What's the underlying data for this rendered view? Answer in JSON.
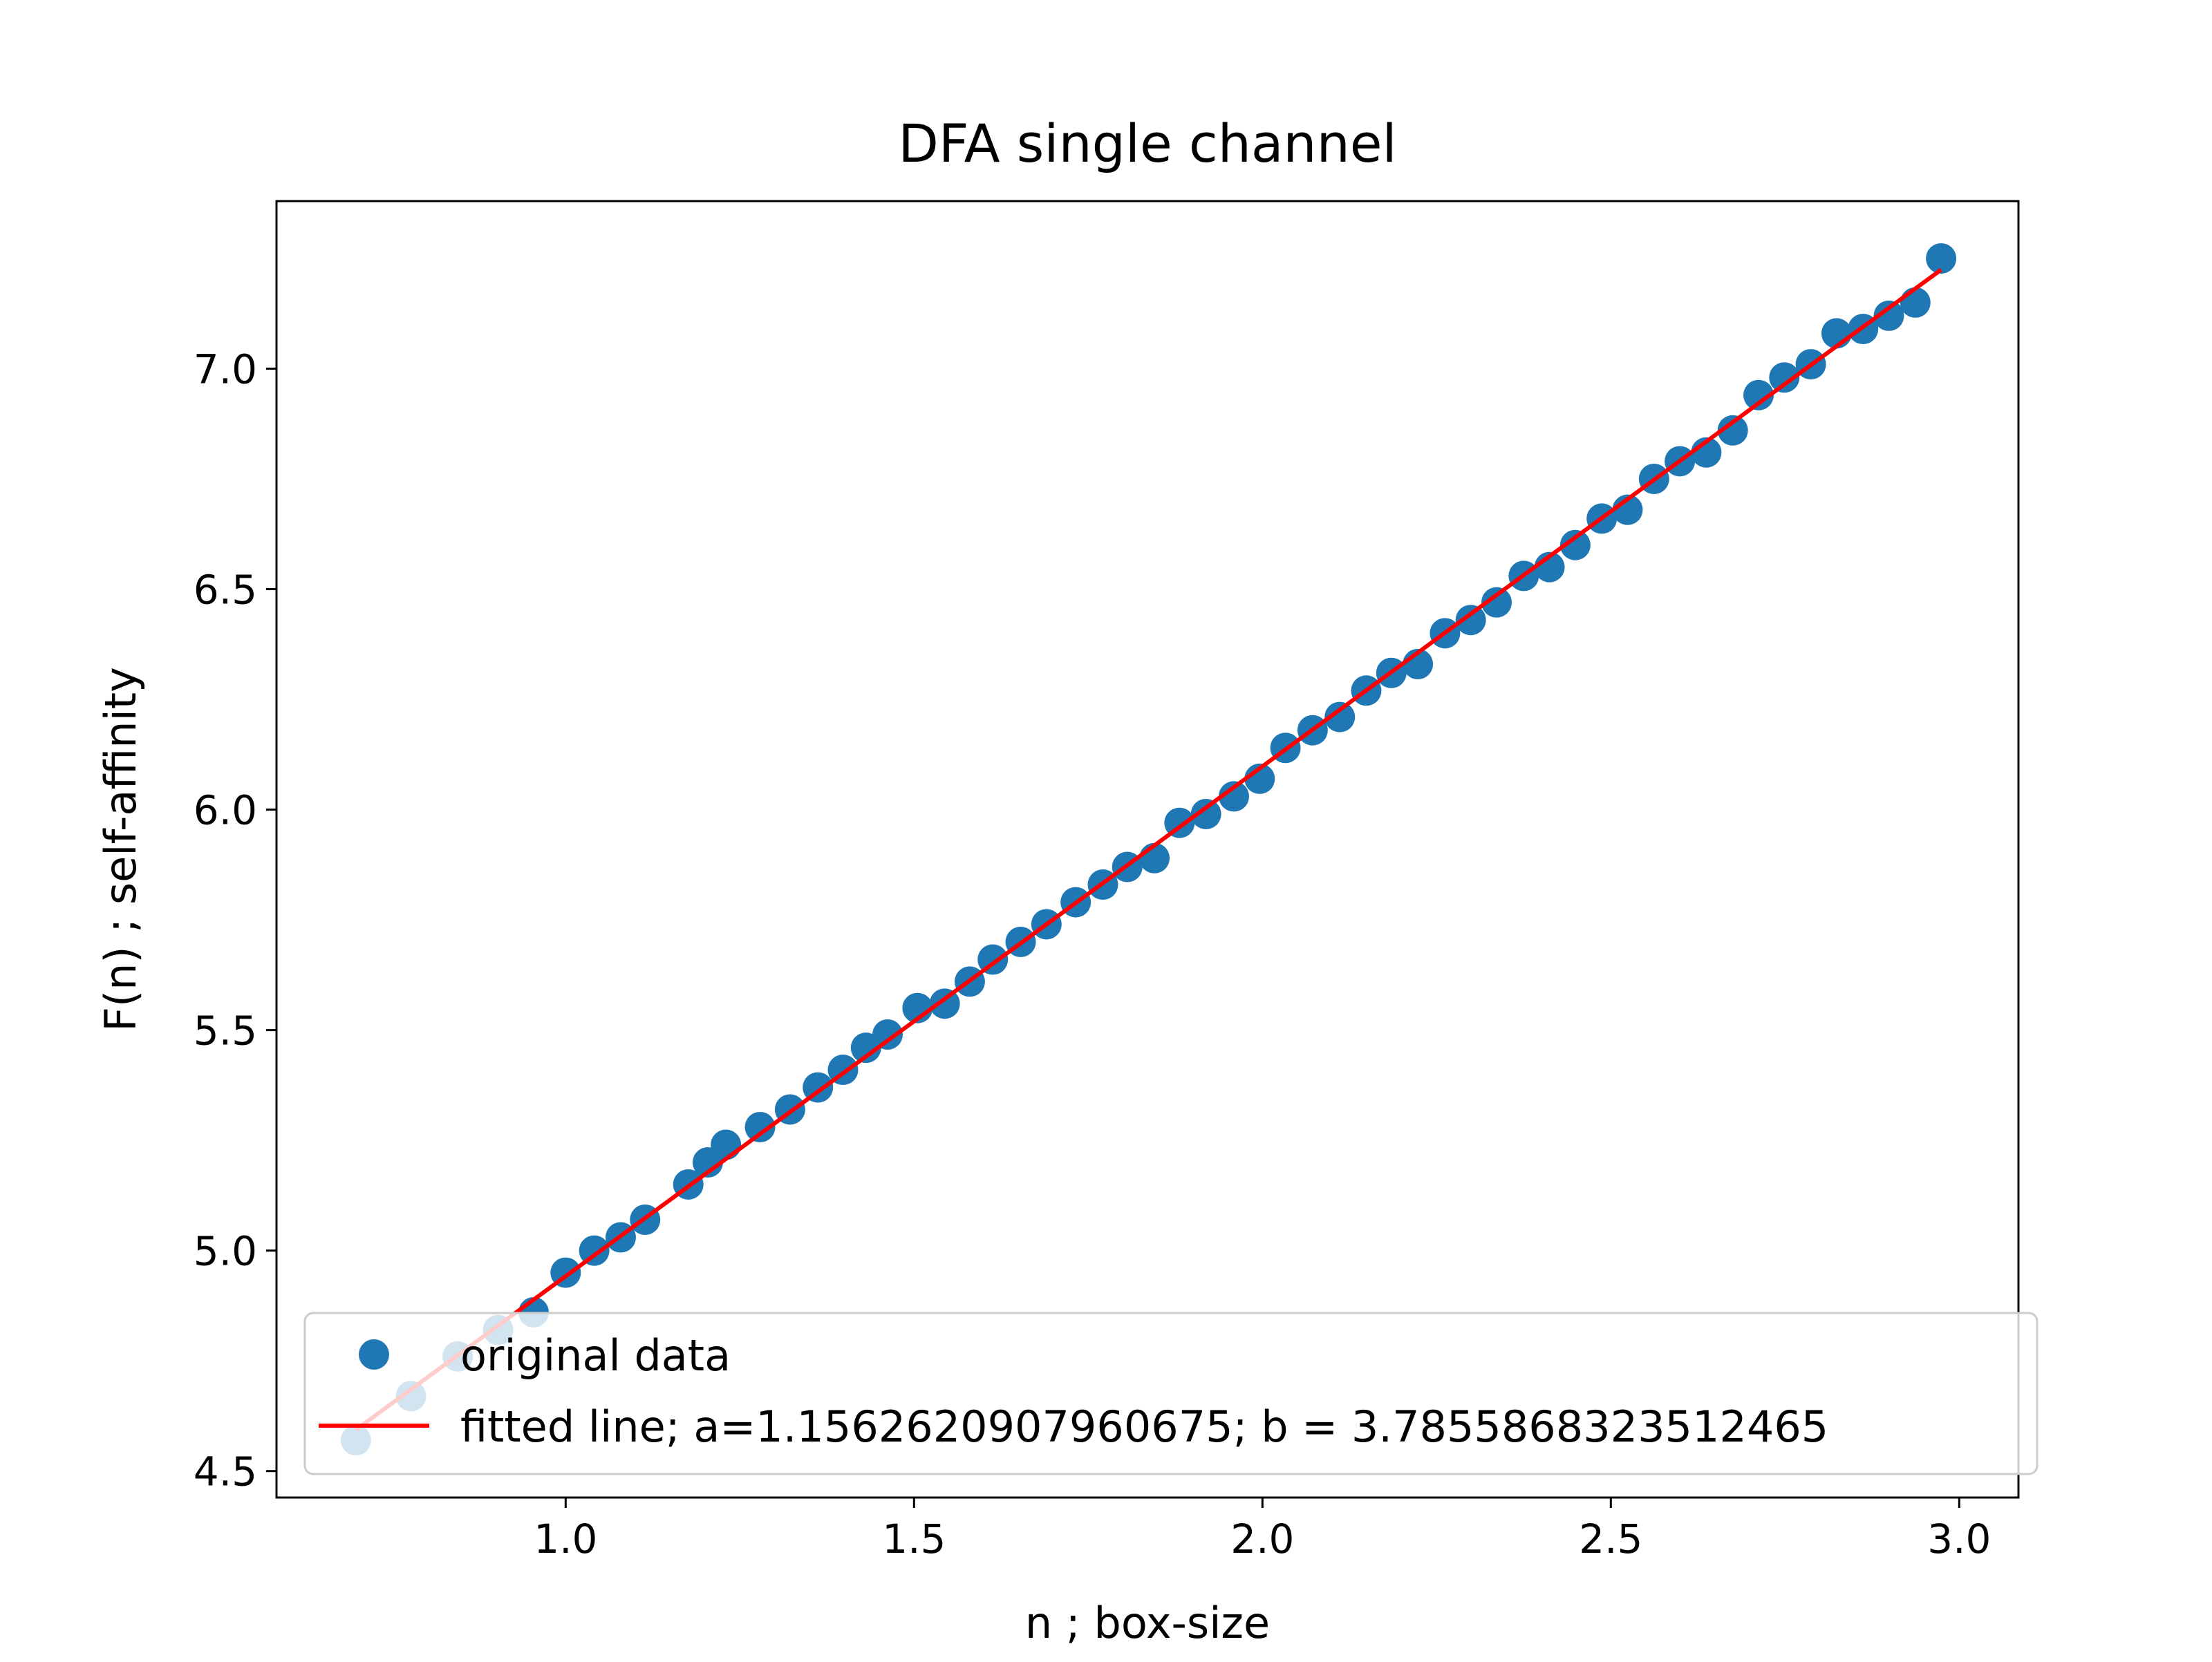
{
  "chart_data": {
    "type": "scatter",
    "title": "DFA single channel",
    "xlabel": "n ; box-size",
    "ylabel": "F(n) ; self-affinity",
    "xlim": [
      0.585,
      3.085
    ],
    "ylim": [
      4.44,
      7.38
    ],
    "x_ticks": [
      1.0,
      1.5,
      2.0,
      2.5,
      3.0
    ],
    "x_tick_labels": [
      "1.0",
      "1.5",
      "2.0",
      "2.5",
      "3.0"
    ],
    "y_ticks": [
      4.5,
      5.0,
      5.5,
      6.0,
      6.5,
      7.0
    ],
    "y_tick_labels": [
      "4.5",
      "5.0",
      "5.5",
      "6.0",
      "6.5",
      "7.0"
    ],
    "grid": false,
    "legend_position": "lower-right",
    "series": [
      {
        "name": "original data",
        "kind": "scatter",
        "color": "#1f77b4",
        "points": [
          [
            0.699,
            4.57
          ],
          [
            0.778,
            4.67
          ],
          [
            0.845,
            4.76
          ],
          [
            0.903,
            4.82
          ],
          [
            0.954,
            4.86
          ],
          [
            1.0,
            4.95
          ],
          [
            1.041,
            5.0
          ],
          [
            1.079,
            5.03
          ],
          [
            1.114,
            5.07
          ],
          [
            1.176,
            5.15
          ],
          [
            1.204,
            5.2
          ],
          [
            1.23,
            5.24
          ],
          [
            1.279,
            5.28
          ],
          [
            1.322,
            5.32
          ],
          [
            1.362,
            5.37
          ],
          [
            1.398,
            5.41
          ],
          [
            1.431,
            5.46
          ],
          [
            1.462,
            5.49
          ],
          [
            1.505,
            5.55
          ],
          [
            1.544,
            5.56
          ],
          [
            1.58,
            5.61
          ],
          [
            1.613,
            5.66
          ],
          [
            1.653,
            5.7
          ],
          [
            1.69,
            5.74
          ],
          [
            1.732,
            5.79
          ],
          [
            1.771,
            5.83
          ],
          [
            1.806,
            5.87
          ],
          [
            1.845,
            5.89
          ],
          [
            1.881,
            5.97
          ],
          [
            1.919,
            5.99
          ],
          [
            1.959,
            6.03
          ],
          [
            1.996,
            6.07
          ],
          [
            2.033,
            6.14
          ],
          [
            2.072,
            6.18
          ],
          [
            2.111,
            6.21
          ],
          [
            2.149,
            6.27
          ],
          [
            2.185,
            6.31
          ],
          [
            2.223,
            6.33
          ],
          [
            2.262,
            6.4
          ],
          [
            2.299,
            6.43
          ],
          [
            2.336,
            6.47
          ],
          [
            2.375,
            6.53
          ],
          [
            2.412,
            6.55
          ],
          [
            2.449,
            6.6
          ],
          [
            2.487,
            6.66
          ],
          [
            2.524,
            6.68
          ],
          [
            2.562,
            6.75
          ],
          [
            2.599,
            6.79
          ],
          [
            2.637,
            6.81
          ],
          [
            2.675,
            6.86
          ],
          [
            2.712,
            6.94
          ],
          [
            2.749,
            6.98
          ],
          [
            2.787,
            7.01
          ],
          [
            2.824,
            7.08
          ],
          [
            2.862,
            7.09
          ],
          [
            2.899,
            7.12
          ],
          [
            2.937,
            7.15
          ],
          [
            2.974,
            7.25
          ]
        ]
      },
      {
        "name": "fitted line; a=1.1562620907960675; b = 3.7855868323512465",
        "kind": "line",
        "color": "#ff0000",
        "slope": 1.1562620907960675,
        "intercept": 3.7855868323512465,
        "x_range": [
          0.699,
          2.974
        ]
      }
    ]
  }
}
